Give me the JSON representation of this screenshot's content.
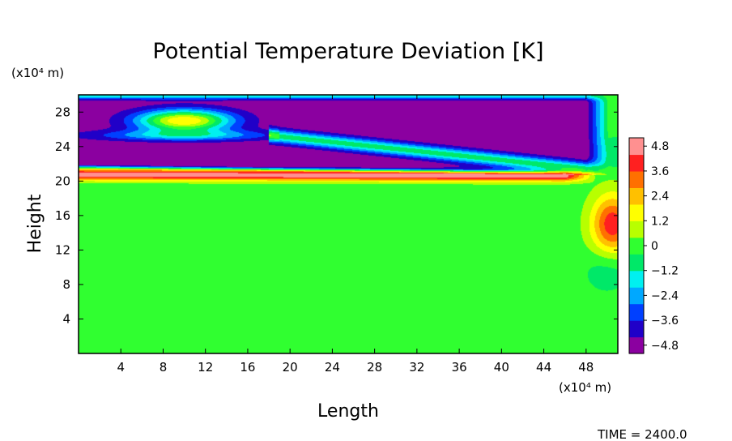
{
  "chart_data": {
    "type": "heatmap",
    "title": "Potential Temperature Deviation [K]",
    "xlabel": "Length",
    "ylabel": "Height",
    "x_unit_label": "(x10⁴ m)",
    "y_unit_label": "(x10⁴ m)",
    "xlim": [
      0,
      51
    ],
    "ylim": [
      0,
      30
    ],
    "x_ticks": [
      4,
      8,
      12,
      16,
      20,
      24,
      28,
      32,
      36,
      40,
      44,
      48
    ],
    "y_ticks": [
      4,
      8,
      12,
      16,
      20,
      24,
      28
    ],
    "colorbar": {
      "min": -5.2,
      "max": 5.2,
      "tick_values": [
        4.8,
        3.6,
        2.4,
        1.2,
        0,
        -1.2,
        -2.4,
        -3.6,
        -4.8
      ],
      "tick_labels": [
        "4.8",
        "3.6",
        "2.4",
        "1.2",
        "0",
        "−1.2",
        "−2.4",
        "−3.6",
        "−4.8"
      ],
      "colors": [
        "#8b00a0",
        "#2000c8",
        "#0040ff",
        "#00a8ff",
        "#00f0f0",
        "#00e868",
        "#30ff30",
        "#b8ff00",
        "#ffff00",
        "#ffc000",
        "#ff7000",
        "#ff2020",
        "#ff9090"
      ]
    },
    "field_features": [
      {
        "kind": "warm_band",
        "y_center": 20.6,
        "x_range": [
          0,
          51
        ],
        "peak": 5.0
      },
      {
        "kind": "cold_layer",
        "y_range": [
          22,
          25
        ],
        "x_range": [
          0,
          51
        ],
        "value": -5.0
      },
      {
        "kind": "cold_cell",
        "x_range": [
          16,
          50
        ],
        "y_range": [
          24.5,
          29.5
        ],
        "value": -5.0
      },
      {
        "kind": "cold_cell",
        "x_range": [
          0,
          16
        ],
        "y_range": [
          25.5,
          29.5
        ],
        "value": -4.8
      },
      {
        "kind": "warm_cell",
        "x_center": 10,
        "y_center": 27,
        "peak": 2.4
      },
      {
        "kind": "warm_cell",
        "x_center": 50,
        "y_center": 15,
        "peak": 4.0
      }
    ],
    "annotation": "TIME = 2400.0"
  }
}
